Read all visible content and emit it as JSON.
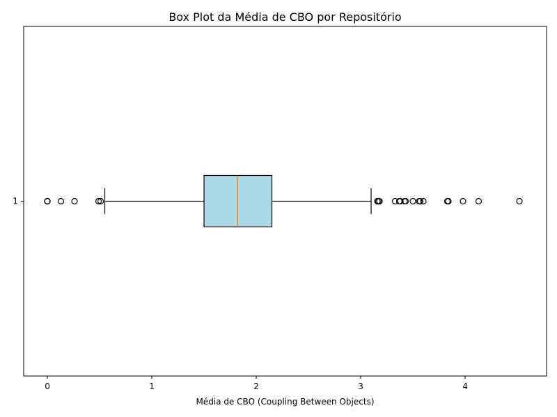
{
  "chart_data": {
    "type": "boxplot",
    "orientation": "horizontal",
    "title": "Box Plot da Média de CBO por Repositório",
    "xlabel": "Média de CBO (Coupling Between Objects)",
    "ylabel": "",
    "categories": [
      "1"
    ],
    "xlim": [
      -0.227,
      4.78
    ],
    "x_ticks": [
      0,
      1,
      2,
      3,
      4
    ],
    "grid": false,
    "box": {
      "whisker_low": 0.55,
      "q1": 1.5,
      "median": 1.82,
      "q3": 2.15,
      "whisker_high": 3.1
    },
    "outliers": [
      0.0,
      0.0,
      0.0,
      0.13,
      0.26,
      0.49,
      0.51,
      3.16,
      3.17,
      3.18,
      3.33,
      3.37,
      3.38,
      3.42,
      3.43,
      3.5,
      3.56,
      3.57,
      3.6,
      3.83,
      3.84,
      3.98,
      4.13,
      4.52
    ],
    "colors": {
      "box_fill": "#add8e6",
      "median_line": "#ff7f0e",
      "lines": "#000000"
    }
  }
}
